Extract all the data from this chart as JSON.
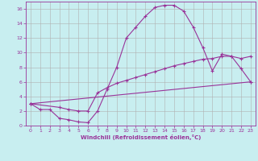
{
  "xlabel": "Windchill (Refroidissement éolien,°C)",
  "bg_color": "#c8eef0",
  "grid_color": "#b0b0b0",
  "line_color": "#993399",
  "xlim": [
    -0.5,
    23.5
  ],
  "ylim": [
    0,
    17
  ],
  "xticks": [
    0,
    1,
    2,
    3,
    4,
    5,
    6,
    7,
    8,
    9,
    10,
    11,
    12,
    13,
    14,
    15,
    16,
    17,
    18,
    19,
    20,
    21,
    22,
    23
  ],
  "yticks": [
    0,
    2,
    4,
    6,
    8,
    10,
    12,
    14,
    16
  ],
  "line1_x": [
    0,
    1,
    2,
    3,
    4,
    5,
    6,
    7,
    8,
    9,
    10,
    11,
    12,
    13,
    14,
    15,
    16,
    17,
    18,
    19,
    20,
    21,
    22,
    23
  ],
  "line1_y": [
    3.0,
    2.2,
    2.2,
    1.0,
    0.8,
    0.5,
    0.4,
    2.0,
    5.0,
    8.0,
    12.0,
    13.5,
    15.0,
    16.2,
    16.5,
    16.5,
    15.7,
    13.5,
    10.7,
    7.5,
    9.8,
    9.5,
    7.8,
    6.0
  ],
  "line2_x": [
    0,
    3,
    4,
    5,
    6,
    7,
    8,
    9,
    10,
    11,
    12,
    13,
    14,
    15,
    16,
    17,
    18,
    19,
    20,
    21,
    22,
    23
  ],
  "line2_y": [
    3.0,
    2.5,
    2.2,
    2.0,
    2.0,
    4.5,
    5.2,
    5.8,
    6.2,
    6.6,
    7.0,
    7.4,
    7.8,
    8.2,
    8.5,
    8.8,
    9.1,
    9.2,
    9.5,
    9.5,
    9.2,
    9.5
  ],
  "line3_x": [
    0,
    23
  ],
  "line3_y": [
    3.0,
    6.0
  ]
}
